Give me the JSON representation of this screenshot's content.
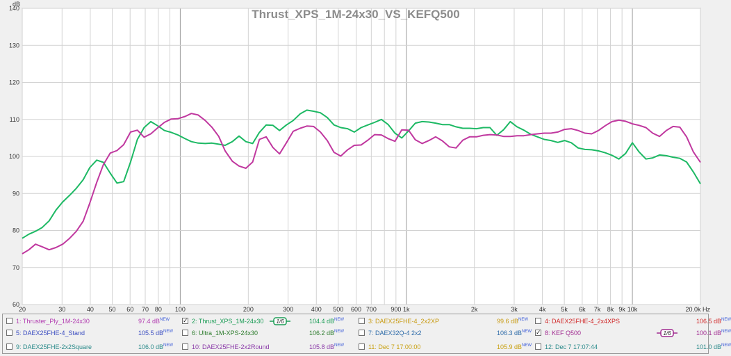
{
  "chart_data": {
    "type": "line",
    "title": "Thrust_XPS_1M-24x30_VS_KEFQ500",
    "ylabel": "dB",
    "x_unit": "Hz",
    "xscale": "log",
    "xlim": [
      20,
      20000
    ],
    "ylim": [
      60,
      140
    ],
    "x_ticks": [
      {
        "v": 20,
        "label": "20"
      },
      {
        "v": 30,
        "label": "30"
      },
      {
        "v": 40,
        "label": "40"
      },
      {
        "v": 50,
        "label": "50"
      },
      {
        "v": 60,
        "label": "60"
      },
      {
        "v": 70,
        "label": "70"
      },
      {
        "v": 80,
        "label": "80"
      },
      {
        "v": 100,
        "label": "100"
      },
      {
        "v": 200,
        "label": "200"
      },
      {
        "v": 300,
        "label": "300"
      },
      {
        "v": 400,
        "label": "400"
      },
      {
        "v": 500,
        "label": "500"
      },
      {
        "v": 600,
        "label": "600"
      },
      {
        "v": 700,
        "label": "700"
      },
      {
        "v": 900,
        "label": "900"
      },
      {
        "v": 1000,
        "label": "1k"
      },
      {
        "v": 2000,
        "label": "2k"
      },
      {
        "v": 3000,
        "label": "3k"
      },
      {
        "v": 4000,
        "label": "4k"
      },
      {
        "v": 5000,
        "label": "5k"
      },
      {
        "v": 6000,
        "label": "6k"
      },
      {
        "v": 7000,
        "label": "7k"
      },
      {
        "v": 8000,
        "label": "8k"
      },
      {
        "v": 9000,
        "label": "9k"
      },
      {
        "v": 10000,
        "label": "10k"
      },
      {
        "v": 20000,
        "label": "20.0k Hz"
      }
    ],
    "y_ticks": [
      60,
      70,
      80,
      90,
      100,
      110,
      120,
      130,
      140
    ],
    "grid": true,
    "series": [
      {
        "name": "Thrust_XPS_1M-24x30",
        "color": "#1db964",
        "x": [
          20,
          21.4,
          22.9,
          24.5,
          26.3,
          28.2,
          30.2,
          32.4,
          34.7,
          37.2,
          39.8,
          42.7,
          45.7,
          49,
          52.5,
          56.2,
          60.3,
          64.6,
          69.2,
          74.1,
          79.4,
          85.1,
          91.2,
          97.7,
          105,
          112,
          120,
          129,
          138,
          148,
          158,
          170,
          182,
          195,
          209,
          224,
          240,
          257,
          275,
          295,
          316,
          339,
          363,
          389,
          417,
          447,
          479,
          513,
          550,
          589,
          631,
          676,
          724,
          776,
          832,
          891,
          955,
          1023,
          1096,
          1175,
          1259,
          1349,
          1445,
          1549,
          1660,
          1778,
          1905,
          2042,
          2188,
          2344,
          2512,
          2692,
          2884,
          3090,
          3311,
          3548,
          3802,
          4074,
          4365,
          4677,
          5012,
          5370,
          5754,
          6166,
          6607,
          7079,
          7586,
          8128,
          8710,
          9333,
          10000,
          10715,
          11482,
          12303,
          13183,
          14125,
          15136,
          16218,
          17378,
          18621,
          20000
        ],
        "y": [
          77.9,
          79.0,
          79.8,
          80.8,
          82.6,
          85.5,
          87.7,
          89.5,
          91.4,
          93.7,
          97.0,
          99.0,
          98.4,
          95.5,
          92.8,
          93.2,
          98.5,
          104.6,
          107.8,
          109.4,
          108.3,
          107.0,
          106.5,
          105.8,
          104.8,
          104.0,
          103.6,
          103.5,
          103.6,
          103.3,
          103.0,
          104.0,
          105.5,
          104.0,
          103.5,
          106.5,
          108.5,
          108.4,
          107.0,
          108.5,
          109.7,
          111.5,
          112.5,
          112.2,
          111.8,
          110.5,
          108.5,
          107.8,
          107.5,
          106.6,
          107.8,
          108.5,
          109.2,
          110.0,
          108.6,
          106.3,
          105.0,
          106.9,
          109.0,
          109.4,
          109.3,
          109.0,
          108.6,
          108.6,
          108.0,
          107.6,
          107.6,
          107.5,
          107.8,
          107.8,
          105.7,
          107.2,
          109.4,
          108.0,
          107.1,
          106.0,
          105.3,
          104.6,
          104.3,
          103.8,
          104.3,
          103.7,
          102.3,
          101.9,
          101.8,
          101.5,
          101.0,
          100.3,
          99.3,
          100.8,
          103.7,
          101.2,
          99.3,
          99.6,
          100.4,
          100.2,
          99.8,
          99.5,
          98.5,
          95.8,
          92.6
        ]
      },
      {
        "name": "KEF Q500",
        "color": "#c0389f",
        "x": [
          20,
          21.4,
          22.9,
          24.5,
          26.3,
          28.2,
          30.2,
          32.4,
          34.7,
          37.2,
          39.8,
          42.7,
          45.7,
          49,
          52.5,
          56.2,
          60.3,
          64.6,
          69.2,
          74.1,
          79.4,
          85.1,
          91.2,
          97.7,
          105,
          112,
          120,
          129,
          138,
          148,
          158,
          170,
          182,
          195,
          209,
          224,
          240,
          257,
          275,
          295,
          316,
          339,
          363,
          389,
          417,
          447,
          479,
          513,
          550,
          589,
          631,
          676,
          724,
          776,
          832,
          891,
          955,
          1023,
          1096,
          1175,
          1259,
          1349,
          1445,
          1549,
          1660,
          1778,
          1905,
          2042,
          2188,
          2344,
          2512,
          2692,
          2884,
          3090,
          3311,
          3548,
          3802,
          4074,
          4365,
          4677,
          5012,
          5370,
          5754,
          6166,
          6607,
          7079,
          7586,
          8128,
          8710,
          9333,
          10000,
          10715,
          11482,
          12303,
          13183,
          14125,
          15136,
          16218,
          17378,
          18621,
          20000
        ],
        "y": [
          73.7,
          74.8,
          76.3,
          75.6,
          74.8,
          75.4,
          76.3,
          77.9,
          79.8,
          82.5,
          87.4,
          93.0,
          97.8,
          100.9,
          101.6,
          103.2,
          106.6,
          107.1,
          105.2,
          106.1,
          107.7,
          109.2,
          110.1,
          110.2,
          110.8,
          111.6,
          111.2,
          109.7,
          107.9,
          105.4,
          101.5,
          98.7,
          97.4,
          96.8,
          98.5,
          104.6,
          105.3,
          102.4,
          100.7,
          103.7,
          106.8,
          107.6,
          108.2,
          108.1,
          106.6,
          104.3,
          101.1,
          100.1,
          101.8,
          103.0,
          103.1,
          104.4,
          105.9,
          105.8,
          104.8,
          104.1,
          107.2,
          107.1,
          104.5,
          103.5,
          104.3,
          105.3,
          104.2,
          102.6,
          102.3,
          104.4,
          105.3,
          105.3,
          105.7,
          105.9,
          105.8,
          105.4,
          105.4,
          105.6,
          105.6,
          105.9,
          106.1,
          106.3,
          106.3,
          106.6,
          107.3,
          107.5,
          107.0,
          106.3,
          106.1,
          107.0,
          108.3,
          109.4,
          109.8,
          109.5,
          108.8,
          108.4,
          107.8,
          106.3,
          105.4,
          107.0,
          108.1,
          107.9,
          105.3,
          101.2,
          98.4
        ]
      }
    ]
  },
  "legend": {
    "new_tag": "NEW",
    "items": [
      {
        "label": "1: Thruster_Ply_1M-24x30",
        "value": "97.4 dB",
        "color": "#b23cb0",
        "checked": false,
        "smoothing": ""
      },
      {
        "label": "2: Thrust_XPS_1M-24x30",
        "value": "104.4 dB",
        "color": "#1a9c55",
        "checked": true,
        "smoothing": "1/6"
      },
      {
        "label": "3: DAEX25FHE-4_2x2XP",
        "value": "99.6 dB",
        "color": "#c89a10",
        "checked": false,
        "smoothing": ""
      },
      {
        "label": "4: DAEX25FHE-4_2x4XPS",
        "value": "106.5 dB",
        "color": "#d02828",
        "checked": false,
        "smoothing": ""
      },
      {
        "label": "5: DAEX25FHE-4_Stand",
        "value": "105.5 dB",
        "color": "#3a4cc0",
        "checked": false,
        "smoothing": ""
      },
      {
        "label": "6: Ultra_1M-XPS-24x30",
        "value": "106.2 dB",
        "color": "#2a7a2a",
        "checked": false,
        "smoothing": ""
      },
      {
        "label": "7: DAEX32Q-4 2x2",
        "value": "106.3 dB",
        "color": "#2c6aa8",
        "checked": false,
        "smoothing": ""
      },
      {
        "label": "8: KEF Q500",
        "value": "100.1 dB",
        "color": "#a02a90",
        "checked": true,
        "smoothing": "1/6"
      },
      {
        "label": "9: DAEX25FHE-2x2Square",
        "value": "106.0 dB",
        "color": "#2a8a8a",
        "checked": false,
        "smoothing": ""
      },
      {
        "label": "10: DAEX25FHE-2x2Round",
        "value": "105.8 dB",
        "color": "#8a3aa8",
        "checked": false,
        "smoothing": ""
      },
      {
        "label": "11: Dec 7 17:00:00",
        "value": "105.9 dB",
        "color": "#c8a010",
        "checked": false,
        "smoothing": ""
      },
      {
        "label": "12: Dec 7 17:07:44",
        "value": "101.0 dB",
        "color": "#2a8a8a",
        "checked": false,
        "smoothing": ""
      }
    ]
  }
}
